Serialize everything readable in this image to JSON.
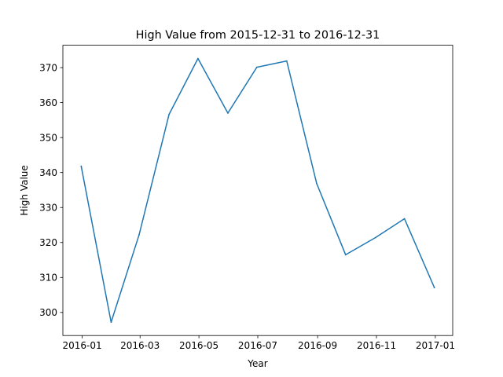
{
  "chart_data": {
    "type": "line",
    "title": "High Value from 2015-12-31 to 2016-12-31",
    "xlabel": "Year",
    "ylabel": "High Value",
    "x": [
      "2015-12-31",
      "2016-01-31",
      "2016-02-29",
      "2016-03-31",
      "2016-04-30",
      "2016-05-31",
      "2016-06-30",
      "2016-07-31",
      "2016-08-31",
      "2016-09-30",
      "2016-10-31",
      "2016-11-30",
      "2016-12-31"
    ],
    "series": [
      {
        "values": [
          341.8,
          297.2,
          322.2,
          356.6,
          372.6,
          357.0,
          370.1,
          371.9,
          336.9,
          316.5,
          321.4,
          326.8,
          307.1
        ],
        "color": "#1f77b4"
      }
    ],
    "xlim": [
      "2015-12-12",
      "2017-01-19"
    ],
    "ylim": [
      293.4,
      376.4
    ],
    "x_ticks": [
      {
        "date": "2016-01-01",
        "label": "2016-01"
      },
      {
        "date": "2016-03-01",
        "label": "2016-03"
      },
      {
        "date": "2016-05-01",
        "label": "2016-05"
      },
      {
        "date": "2016-07-01",
        "label": "2016-07"
      },
      {
        "date": "2016-09-01",
        "label": "2016-09"
      },
      {
        "date": "2016-11-01",
        "label": "2016-11"
      },
      {
        "date": "2017-01-01",
        "label": "2017-01"
      }
    ],
    "y_ticks": [
      300,
      310,
      320,
      330,
      340,
      350,
      360,
      370
    ],
    "grid": false,
    "legend": "none"
  }
}
